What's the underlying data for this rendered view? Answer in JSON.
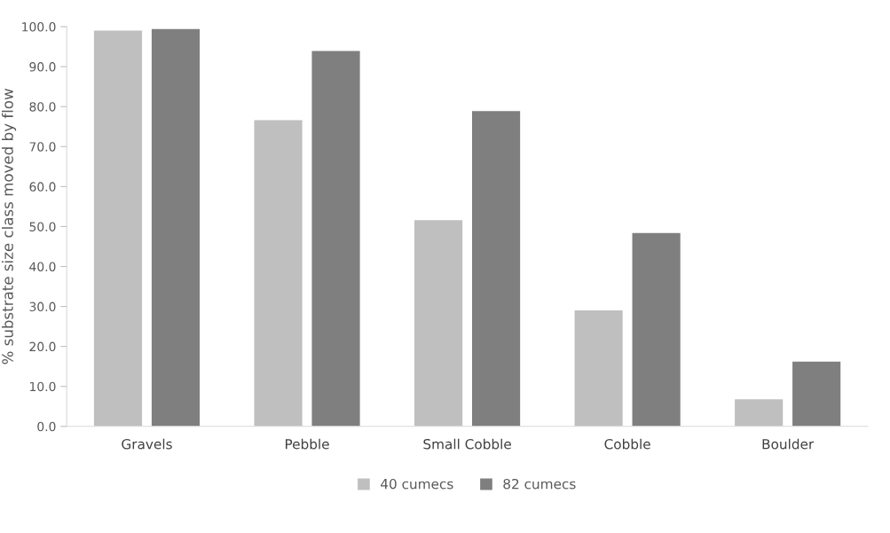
{
  "chart_data": {
    "type": "bar",
    "ylabel": "% substrate size class moved by flow",
    "categories": [
      "Gravels",
      "Pebble",
      "Small Cobble",
      "Cobble",
      "Boulder"
    ],
    "series": [
      {
        "name": "40 cumecs",
        "color": "#bfbfbf",
        "values": [
          99.0,
          76.6,
          51.6,
          29.0,
          6.8
        ]
      },
      {
        "name": "82 cumecs",
        "color": "#7f7f7f",
        "values": [
          99.4,
          93.9,
          78.9,
          48.4,
          16.2
        ]
      }
    ],
    "ylim": [
      0,
      100
    ],
    "yticks": [
      {
        "value": 0,
        "label": "0.0"
      },
      {
        "value": 10,
        "label": "10.0"
      },
      {
        "value": 20,
        "label": "20.0"
      },
      {
        "value": 30,
        "label": "30.0"
      },
      {
        "value": 40,
        "label": "40.0"
      },
      {
        "value": 50,
        "label": "50.0"
      },
      {
        "value": 60,
        "label": "60.0"
      },
      {
        "value": 70,
        "label": "70.0"
      },
      {
        "value": 80,
        "label": "80.0"
      },
      {
        "value": 90,
        "label": "90.0"
      },
      {
        "value": 100,
        "label": "100.0"
      }
    ],
    "grid": false,
    "legend": "bottom"
  }
}
